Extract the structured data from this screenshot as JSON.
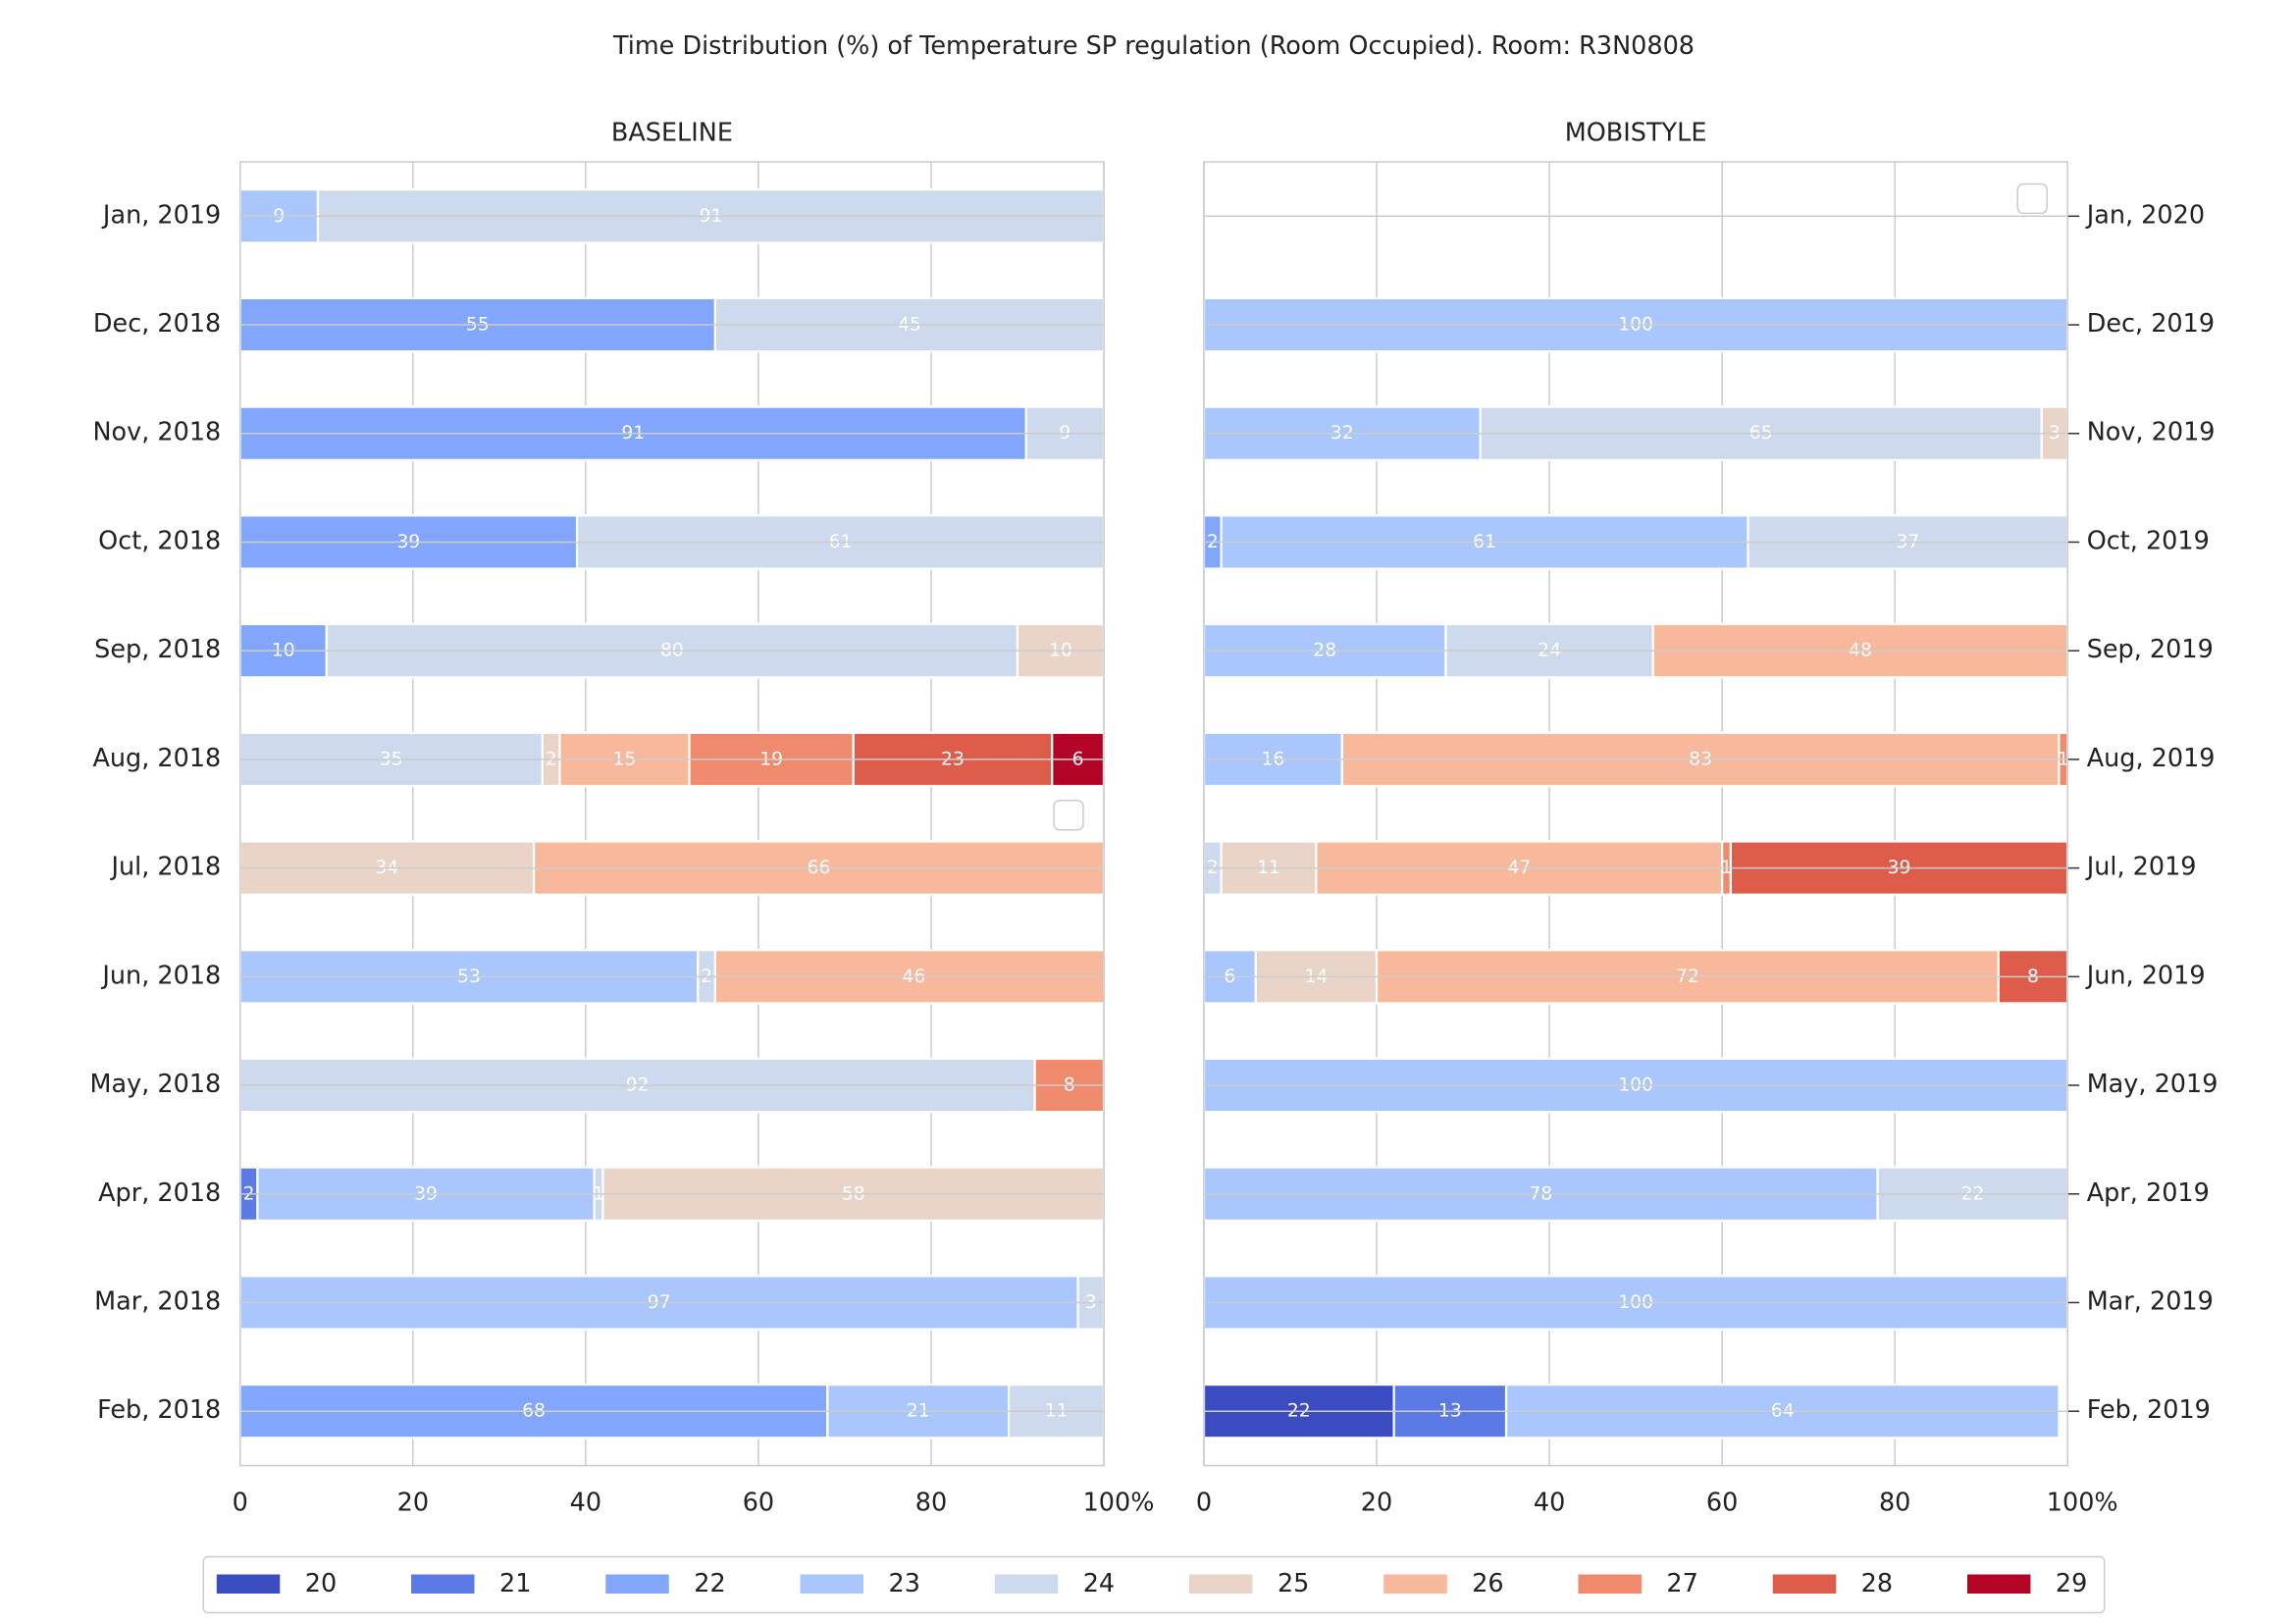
{
  "title": "Time Distribution (%) of Temperature SP regulation (Room Occupied). Room: R3N0808",
  "chart_data": [
    {
      "type": "bar",
      "orientation": "horizontal",
      "stacked": true,
      "title": "BASELINE",
      "y_axis_position": "left",
      "grid": true,
      "categories": [
        "Jan, 2019",
        "Dec, 2018",
        "Nov, 2018",
        "Oct, 2018",
        "Sep, 2018",
        "Aug, 2018",
        "Jul, 2018",
        "Jun, 2018",
        "May, 2018",
        "Apr, 2018",
        "Mar, 2018",
        "Feb, 2018"
      ],
      "xlim": [
        0,
        100
      ],
      "xticks": [
        0,
        20,
        40,
        60,
        80,
        {
          "value": 100,
          "label": "100%"
        }
      ],
      "series": [
        {
          "name": "20",
          "color": "#3b4cc0",
          "values": [
            0,
            0,
            0,
            0,
            0,
            0,
            0,
            0,
            0,
            0,
            0,
            0
          ]
        },
        {
          "name": "21",
          "color": "#5b7ae5",
          "values": [
            0,
            0,
            0,
            0,
            0,
            0,
            0,
            0,
            0,
            2,
            0,
            0
          ]
        },
        {
          "name": "22",
          "color": "#82a6fb",
          "values": [
            0,
            55,
            91,
            39,
            10,
            0,
            0,
            0,
            0,
            0,
            0,
            68
          ]
        },
        {
          "name": "23",
          "color": "#aac7fd",
          "values": [
            9,
            0,
            0,
            0,
            0,
            0,
            0,
            53,
            0,
            39,
            97,
            21
          ]
        },
        {
          "name": "24",
          "color": "#cdd9ec",
          "values": [
            91,
            45,
            9,
            61,
            80,
            35,
            0,
            2,
            92,
            1,
            3,
            11
          ]
        },
        {
          "name": "25",
          "color": "#ead4c8",
          "values": [
            0,
            0,
            0,
            0,
            10,
            2,
            34,
            0,
            0,
            58,
            0,
            0
          ]
        },
        {
          "name": "26",
          "color": "#f7b89c",
          "values": [
            0,
            0,
            0,
            0,
            0,
            15,
            66,
            46,
            0,
            0,
            0,
            0
          ]
        },
        {
          "name": "27",
          "color": "#ef8a6c",
          "values": [
            0,
            0,
            0,
            0,
            0,
            19,
            0,
            0,
            8,
            0,
            0,
            0
          ]
        },
        {
          "name": "28",
          "color": "#dd5c4a",
          "values": [
            0,
            0,
            0,
            0,
            0,
            23,
            0,
            0,
            0,
            0,
            0,
            0
          ]
        },
        {
          "name": "29",
          "color": "#b40426",
          "values": [
            0,
            0,
            0,
            0,
            0,
            6,
            0,
            0,
            0,
            0,
            0,
            0
          ]
        }
      ]
    },
    {
      "type": "bar",
      "orientation": "horizontal",
      "stacked": true,
      "title": "MOBISTYLE",
      "y_axis_position": "right",
      "grid": true,
      "categories": [
        "Jan, 2020",
        "Dec, 2019",
        "Nov, 2019",
        "Oct, 2019",
        "Sep, 2019",
        "Aug, 2019",
        "Jul, 2019",
        "Jun, 2019",
        "May, 2019",
        "Apr, 2019",
        "Mar, 2019",
        "Feb, 2019"
      ],
      "xlim": [
        0,
        100
      ],
      "xticks": [
        0,
        20,
        40,
        60,
        80,
        {
          "value": 100,
          "label": "100%"
        }
      ],
      "series": [
        {
          "name": "20",
          "values": [
            0,
            0,
            0,
            0,
            0,
            0,
            0,
            0,
            0,
            0,
            0,
            22
          ]
        },
        {
          "name": "21",
          "values": [
            0,
            0,
            0,
            0,
            0,
            0,
            0,
            0,
            0,
            0,
            0,
            13
          ]
        },
        {
          "name": "22",
          "values": [
            0,
            0,
            0,
            2,
            0,
            0,
            0,
            0,
            0,
            0,
            0,
            0
          ]
        },
        {
          "name": "23",
          "values": [
            0,
            100,
            32,
            61,
            28,
            16,
            0,
            6,
            100,
            78,
            100,
            64
          ]
        },
        {
          "name": "24",
          "values": [
            0,
            0,
            65,
            37,
            24,
            0,
            2,
            0,
            0,
            22,
            0,
            0
          ]
        },
        {
          "name": "25",
          "values": [
            0,
            0,
            3,
            0,
            0,
            0,
            11,
            14,
            0,
            0,
            0,
            0
          ]
        },
        {
          "name": "26",
          "values": [
            0,
            0,
            0,
            0,
            48,
            83,
            47,
            72,
            0,
            0,
            0,
            0
          ]
        },
        {
          "name": "27",
          "values": [
            0,
            0,
            0,
            0,
            0,
            1,
            1,
            0,
            0,
            0,
            0,
            0
          ]
        },
        {
          "name": "28",
          "values": [
            0,
            0,
            0,
            0,
            0,
            0,
            39,
            8,
            0,
            0,
            0,
            0
          ]
        },
        {
          "name": "29",
          "values": [
            0,
            0,
            0,
            0,
            0,
            0,
            0,
            0,
            0,
            0,
            0,
            0
          ]
        }
      ]
    }
  ]
}
